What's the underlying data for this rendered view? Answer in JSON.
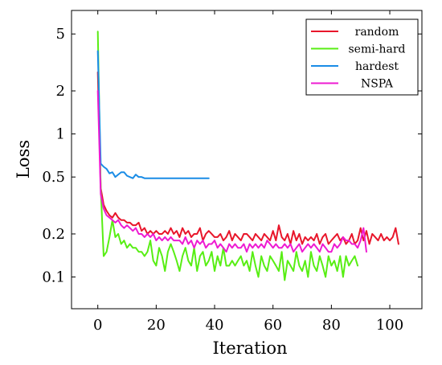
{
  "chart_data": {
    "type": "line",
    "title": "",
    "xlabel": "Iteration",
    "ylabel": "Loss",
    "xlim": [
      -9,
      111
    ],
    "ylim": [
      0.06,
      7.3
    ],
    "yscale": "log",
    "xticks": [
      0,
      20,
      40,
      60,
      80,
      100
    ],
    "xtick_labels": [
      "0",
      "20",
      "40",
      "60",
      "80",
      "100"
    ],
    "yticks": [
      0.1,
      0.2,
      0.5,
      1,
      2,
      5
    ],
    "ytick_labels": [
      "0.1",
      "0.2",
      "0.5",
      "1",
      "2",
      "5"
    ],
    "grid": false,
    "legend_position": "top-right",
    "series": [
      {
        "name": "random",
        "color": "#e8162b",
        "x": [
          0,
          1,
          2,
          3,
          4,
          5,
          6,
          7,
          8,
          9,
          10,
          11,
          12,
          13,
          14,
          15,
          16,
          17,
          18,
          19,
          20,
          21,
          22,
          23,
          24,
          25,
          26,
          27,
          28,
          29,
          30,
          31,
          32,
          33,
          34,
          35,
          36,
          37,
          38,
          39,
          40,
          41,
          42,
          43,
          44,
          45,
          46,
          47,
          48,
          49,
          50,
          51,
          52,
          53,
          54,
          55,
          56,
          57,
          58,
          59,
          60,
          61,
          62,
          63,
          64,
          65,
          66,
          67,
          68,
          69,
          70,
          71,
          72,
          73,
          74,
          75,
          76,
          77,
          78,
          79,
          80,
          81,
          82,
          83,
          84,
          85,
          86,
          87,
          88,
          89,
          90,
          91,
          92,
          93,
          94,
          95,
          96,
          97,
          98,
          99,
          100,
          101,
          102,
          103
        ],
        "values": [
          2.7,
          0.42,
          0.32,
          0.29,
          0.27,
          0.26,
          0.28,
          0.26,
          0.25,
          0.25,
          0.24,
          0.24,
          0.23,
          0.23,
          0.24,
          0.21,
          0.22,
          0.2,
          0.21,
          0.2,
          0.21,
          0.2,
          0.2,
          0.21,
          0.2,
          0.22,
          0.2,
          0.21,
          0.19,
          0.22,
          0.2,
          0.21,
          0.19,
          0.2,
          0.2,
          0.22,
          0.18,
          0.2,
          0.21,
          0.2,
          0.19,
          0.19,
          0.2,
          0.18,
          0.19,
          0.21,
          0.18,
          0.2,
          0.19,
          0.18,
          0.2,
          0.2,
          0.19,
          0.18,
          0.2,
          0.19,
          0.18,
          0.2,
          0.19,
          0.18,
          0.21,
          0.18,
          0.23,
          0.19,
          0.18,
          0.2,
          0.17,
          0.21,
          0.18,
          0.2,
          0.17,
          0.19,
          0.18,
          0.19,
          0.18,
          0.2,
          0.17,
          0.19,
          0.2,
          0.17,
          0.18,
          0.19,
          0.2,
          0.18,
          0.19,
          0.17,
          0.18,
          0.2,
          0.17,
          0.18,
          0.22,
          0.18,
          0.21,
          0.17,
          0.2,
          0.19,
          0.18,
          0.2,
          0.18,
          0.19,
          0.18,
          0.19,
          0.22,
          0.17
        ]
      },
      {
        "name": "semi-hard",
        "color": "#58ee14",
        "x": [
          0,
          1,
          2,
          3,
          4,
          5,
          6,
          7,
          8,
          9,
          10,
          11,
          12,
          13,
          14,
          15,
          16,
          17,
          18,
          19,
          20,
          21,
          22,
          23,
          24,
          25,
          26,
          27,
          28,
          29,
          30,
          31,
          32,
          33,
          34,
          35,
          36,
          37,
          38,
          39,
          40,
          41,
          42,
          43,
          44,
          45,
          46,
          47,
          48,
          49,
          50,
          51,
          52,
          53,
          54,
          55,
          56,
          57,
          58,
          59,
          60,
          61,
          62,
          63,
          64,
          65,
          66,
          67,
          68,
          69,
          70,
          71,
          72,
          73,
          74,
          75,
          76,
          77,
          78,
          79,
          80,
          81,
          82,
          83,
          84,
          85,
          86,
          87,
          88,
          89
        ],
        "values": [
          5.2,
          0.42,
          0.14,
          0.15,
          0.19,
          0.25,
          0.19,
          0.2,
          0.17,
          0.18,
          0.16,
          0.17,
          0.16,
          0.16,
          0.15,
          0.15,
          0.14,
          0.15,
          0.18,
          0.13,
          0.12,
          0.16,
          0.14,
          0.11,
          0.15,
          0.17,
          0.15,
          0.13,
          0.11,
          0.14,
          0.16,
          0.13,
          0.12,
          0.16,
          0.11,
          0.14,
          0.15,
          0.12,
          0.13,
          0.15,
          0.11,
          0.14,
          0.12,
          0.16,
          0.12,
          0.12,
          0.13,
          0.12,
          0.13,
          0.14,
          0.12,
          0.13,
          0.11,
          0.15,
          0.12,
          0.1,
          0.14,
          0.12,
          0.11,
          0.14,
          0.13,
          0.12,
          0.11,
          0.15,
          0.095,
          0.13,
          0.12,
          0.11,
          0.15,
          0.12,
          0.11,
          0.13,
          0.1,
          0.15,
          0.12,
          0.11,
          0.14,
          0.12,
          0.1,
          0.14,
          0.12,
          0.13,
          0.11,
          0.14,
          0.1,
          0.14,
          0.12,
          0.13,
          0.14,
          0.12
        ]
      },
      {
        "name": "hardest",
        "color": "#1a8ce6",
        "x": [
          0,
          1,
          2,
          3,
          4,
          5,
          6,
          7,
          8,
          9,
          10,
          11,
          12,
          13,
          14,
          15,
          16,
          17,
          18,
          19,
          20,
          21,
          22,
          23,
          24,
          25,
          26,
          27,
          28,
          29,
          30,
          31,
          32,
          33,
          34,
          35,
          36,
          37,
          38
        ],
        "values": [
          3.8,
          0.62,
          0.59,
          0.57,
          0.53,
          0.54,
          0.5,
          0.52,
          0.54,
          0.54,
          0.51,
          0.5,
          0.49,
          0.52,
          0.5,
          0.5,
          0.49,
          0.49,
          0.49,
          0.49,
          0.49,
          0.49,
          0.49,
          0.49,
          0.49,
          0.49,
          0.49,
          0.49,
          0.49,
          0.49,
          0.49,
          0.49,
          0.49,
          0.49,
          0.49,
          0.49,
          0.49,
          0.49,
          0.49
        ]
      },
      {
        "name": "NSPA",
        "color": "#ee1bd2",
        "x": [
          0,
          1,
          2,
          3,
          4,
          5,
          6,
          7,
          8,
          9,
          10,
          11,
          12,
          13,
          14,
          15,
          16,
          17,
          18,
          19,
          20,
          21,
          22,
          23,
          24,
          25,
          26,
          27,
          28,
          29,
          30,
          31,
          32,
          33,
          34,
          35,
          36,
          37,
          38,
          39,
          40,
          41,
          42,
          43,
          44,
          45,
          46,
          47,
          48,
          49,
          50,
          51,
          52,
          53,
          54,
          55,
          56,
          57,
          58,
          59,
          60,
          61,
          62,
          63,
          64,
          65,
          66,
          67,
          68,
          69,
          70,
          71,
          72,
          73,
          74,
          75,
          76,
          77,
          78,
          79,
          80,
          81,
          82,
          83,
          84,
          85,
          86,
          87,
          88,
          89,
          90,
          91,
          92
        ],
        "values": [
          2.0,
          0.38,
          0.3,
          0.27,
          0.26,
          0.25,
          0.24,
          0.25,
          0.23,
          0.22,
          0.23,
          0.22,
          0.21,
          0.22,
          0.2,
          0.2,
          0.19,
          0.2,
          0.19,
          0.2,
          0.18,
          0.19,
          0.18,
          0.19,
          0.18,
          0.19,
          0.18,
          0.18,
          0.18,
          0.17,
          0.19,
          0.17,
          0.18,
          0.16,
          0.18,
          0.17,
          0.18,
          0.16,
          0.17,
          0.17,
          0.18,
          0.16,
          0.17,
          0.16,
          0.15,
          0.17,
          0.16,
          0.17,
          0.16,
          0.16,
          0.17,
          0.15,
          0.17,
          0.16,
          0.17,
          0.16,
          0.17,
          0.16,
          0.18,
          0.17,
          0.16,
          0.17,
          0.16,
          0.16,
          0.17,
          0.16,
          0.17,
          0.15,
          0.16,
          0.17,
          0.15,
          0.16,
          0.17,
          0.16,
          0.17,
          0.16,
          0.15,
          0.17,
          0.16,
          0.15,
          0.15,
          0.17,
          0.16,
          0.17,
          0.19,
          0.18,
          0.18,
          0.17,
          0.17,
          0.16,
          0.18,
          0.22,
          0.15
        ]
      }
    ]
  }
}
